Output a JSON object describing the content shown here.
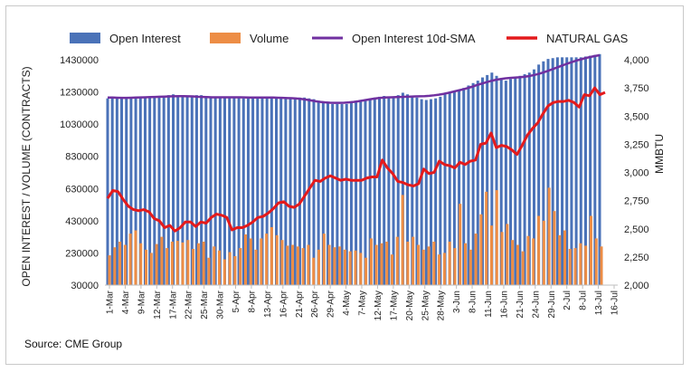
{
  "source": "Source: CME Group",
  "chart_data": {
    "type": "bar",
    "legend": [
      "Open Interest",
      "Volume",
      "Open Interest 10d-SMA",
      "NATURAL GAS"
    ],
    "legend_placement": "top",
    "ylabel_left": "OPEN INTEREST / VOLUME (CONTRACTS)",
    "ylabel_right": "MMBTU",
    "ylim_left": [
      30000,
      1430000
    ],
    "yticks_left": [
      "30000",
      "230000",
      "430000",
      "630000",
      "830000",
      "1030000",
      "1230000",
      "1430000"
    ],
    "ylim_right": [
      2000,
      4000
    ],
    "yticks_right": [
      "2,000",
      "2,250",
      "2,500",
      "2,750",
      "3,000",
      "3,250",
      "3,500",
      "3,750",
      "4,000"
    ],
    "x_tick_labels": [
      "1-Mar",
      "4-Mar",
      "9-Mar",
      "12-Mar",
      "17-Mar",
      "22-Mar",
      "25-Mar",
      "30-Mar",
      "5-Apr",
      "8-Apr",
      "13-Apr",
      "16-Apr",
      "21-Apr",
      "26-Apr",
      "29-Apr",
      "4-May",
      "7-May",
      "12-May",
      "17-May",
      "20-May",
      "25-May",
      "28-May",
      "3-Jun",
      "8-Jun",
      "11-Jun",
      "16-Jun",
      "21-Jun",
      "24-Jun",
      "29-Jun",
      "2-Jul",
      "8-Jul",
      "13-Jul",
      "16-Jul"
    ],
    "grid": false,
    "colors": {
      "open_interest": "#4a72b8",
      "volume": "#ed8d45",
      "sma": "#7030a0",
      "natural_gas": "#e41a1c"
    },
    "series": [
      {
        "name": "Open Interest",
        "axis": "left",
        "values": [
          1190000,
          1195000,
          1195000,
          1190000,
          1190000,
          1195000,
          1200000,
          1195000,
          1200000,
          1200000,
          1195000,
          1200000,
          1205000,
          1210000,
          1215000,
          1205000,
          1200000,
          1200000,
          1205000,
          1210000,
          1210000,
          1205000,
          1200000,
          1195000,
          1195000,
          1195000,
          1195000,
          1195000,
          1200000,
          1190000,
          1190000,
          1195000,
          1195000,
          1195000,
          1195000,
          1195000,
          1195000,
          1195000,
          1190000,
          1190000,
          1195000,
          1195000,
          1195000,
          1190000,
          1185000,
          1175000,
          1165000,
          1160000,
          1155000,
          1155000,
          1155000,
          1155000,
          1160000,
          1165000,
          1175000,
          1180000,
          1190000,
          1195000,
          1200000,
          1205000,
          1200000,
          1200000,
          1210000,
          1225000,
          1215000,
          1205000,
          1195000,
          1185000,
          1180000,
          1185000,
          1190000,
          1200000,
          1215000,
          1225000,
          1230000,
          1240000,
          1255000,
          1270000,
          1285000,
          1300000,
          1320000,
          1335000,
          1350000,
          1330000,
          1310000,
          1300000,
          1310000,
          1320000,
          1330000,
          1340000,
          1350000,
          1370000,
          1400000,
          1420000,
          1435000,
          1440000,
          1445000,
          1445000,
          1445000,
          1445000,
          1445000,
          1445000,
          1450000,
          1455000,
          1460000,
          1465000
        ]
      },
      {
        "name": "Volume",
        "axis": "left",
        "values": [
          215000,
          265000,
          300000,
          280000,
          350000,
          370000,
          290000,
          250000,
          230000,
          285000,
          330000,
          260000,
          300000,
          305000,
          295000,
          310000,
          255000,
          290000,
          300000,
          200000,
          270000,
          245000,
          190000,
          235000,
          210000,
          260000,
          345000,
          320000,
          250000,
          320000,
          350000,
          390000,
          340000,
          310000,
          275000,
          280000,
          270000,
          260000,
          280000,
          200000,
          250000,
          350000,
          280000,
          265000,
          270000,
          250000,
          240000,
          245000,
          230000,
          200000,
          320000,
          280000,
          290000,
          300000,
          220000,
          330000,
          590000,
          300000,
          330000,
          280000,
          250000,
          270000,
          300000,
          220000,
          230000,
          300000,
          260000,
          535000,
          290000,
          250000,
          350000,
          470000,
          610000,
          400000,
          620000,
          360000,
          410000,
          310000,
          280000,
          240000,
          335000,
          320000,
          460000,
          430000,
          635000,
          490000,
          340000,
          370000,
          255000,
          260000,
          290000,
          275000,
          460000,
          320000,
          270000
        ]
      },
      {
        "name": "Open Interest 10d-SMA",
        "axis": "left",
        "values": [
          1195000,
          1195000,
          1194000,
          1193000,
          1193000,
          1194000,
          1195000,
          1196000,
          1197000,
          1198000,
          1199000,
          1200000,
          1201000,
          1202000,
          1203000,
          1204000,
          1204000,
          1203000,
          1202000,
          1200000,
          1199000,
          1198000,
          1197000,
          1197000,
          1197000,
          1197000,
          1197000,
          1197000,
          1197000,
          1196000,
          1195000,
          1195000,
          1195000,
          1195000,
          1195000,
          1195000,
          1194000,
          1193000,
          1192000,
          1191000,
          1189000,
          1186000,
          1182000,
          1177000,
          1172000,
          1168000,
          1165000,
          1163000,
          1162000,
          1162000,
          1163000,
          1165000,
          1168000,
          1172000,
          1177000,
          1182000,
          1187000,
          1191000,
          1194000,
          1196000,
          1197000,
          1198000,
          1199000,
          1200000,
          1201000,
          1202000,
          1203000,
          1204000,
          1206000,
          1209000,
          1213000,
          1218000,
          1224000,
          1231000,
          1238000,
          1245000,
          1253000,
          1262000,
          1272000,
          1281000,
          1290000,
          1298000,
          1305000,
          1310000,
          1314000,
          1317000,
          1319000,
          1321000,
          1324000,
          1328000,
          1334000,
          1341000,
          1350000,
          1360000,
          1371000,
          1382000,
          1393000,
          1404000,
          1414000,
          1424000,
          1432000,
          1440000,
          1447000,
          1453000,
          1458000
        ]
      },
      {
        "name": "NATURAL GAS",
        "axis": "right",
        "values": [
          2770,
          2840,
          2830,
          2760,
          2700,
          2670,
          2660,
          2670,
          2650,
          2590,
          2570,
          2510,
          2530,
          2480,
          2510,
          2560,
          2560,
          2520,
          2560,
          2550,
          2600,
          2630,
          2620,
          2600,
          2490,
          2510,
          2510,
          2530,
          2560,
          2600,
          2610,
          2640,
          2680,
          2730,
          2740,
          2700,
          2690,
          2720,
          2790,
          2860,
          2930,
          2920,
          2950,
          2970,
          2950,
          2930,
          2940,
          2930,
          2930,
          2930,
          2950,
          2960,
          2960,
          3110,
          3040,
          2990,
          2920,
          2910,
          2890,
          2880,
          2900,
          3030,
          2990,
          3000,
          3100,
          3070,
          3060,
          3040,
          3090,
          3070,
          3100,
          3110,
          3250,
          3260,
          3350,
          3220,
          3240,
          3230,
          3200,
          3160,
          3240,
          3330,
          3390,
          3440,
          3520,
          3590,
          3620,
          3630,
          3630,
          3640,
          3620,
          3580,
          3690,
          3680,
          3750,
          3690,
          3710
        ]
      }
    ]
  }
}
